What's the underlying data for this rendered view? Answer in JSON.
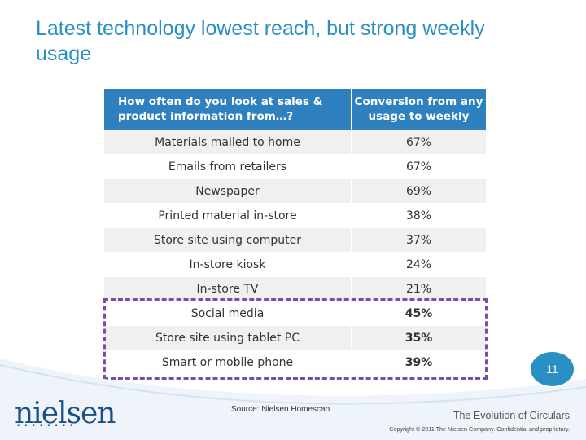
{
  "slide": {
    "title": "Latest technology lowest reach, but strong weekly usage",
    "page_number": "11"
  },
  "table": {
    "headers": [
      "How often do you look at sales & product information from…?",
      "Conversion from any usage to weekly"
    ],
    "rows": [
      {
        "source": "Materials mailed to home",
        "conversion": "67%"
      },
      {
        "source": "Emails from retailers",
        "conversion": "67%"
      },
      {
        "source": "Newspaper",
        "conversion": "69%"
      },
      {
        "source": "Printed material in-store",
        "conversion": "38%"
      },
      {
        "source": "Store site using computer",
        "conversion": "37%"
      },
      {
        "source": "In-store kiosk",
        "conversion": "24%"
      },
      {
        "source": "In-store TV",
        "conversion": "21%"
      },
      {
        "source": "Social media",
        "conversion": "45%"
      },
      {
        "source": "Store site using tablet PC",
        "conversion": "35%"
      },
      {
        "source": "Smart or mobile phone",
        "conversion": "39%"
      }
    ],
    "highlight_color": "#7b4ea6"
  },
  "footer": {
    "logo_text": "nielsen",
    "source": "Source:  Nielsen Homescan",
    "report_title": "The Evolution of Circulars",
    "copyright": "Copyright © 2011 The Nielsen Company. Confidential and proprietary."
  },
  "colors": {
    "accent": "#2a8fc4",
    "header_bg": "#2f80bf",
    "logo": "#1b4f85"
  }
}
